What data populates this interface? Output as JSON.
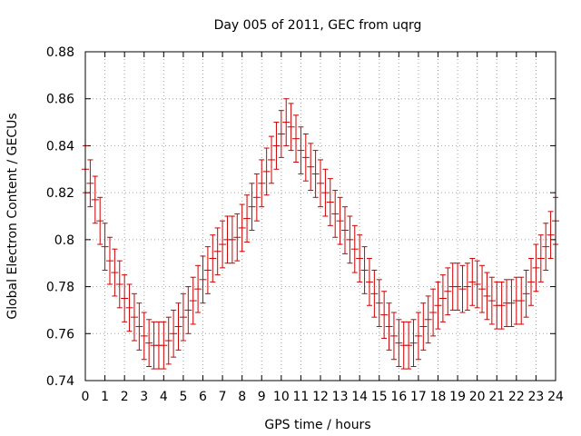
{
  "chart_data": {
    "type": "line",
    "title": "Day 005 of 2011, GEC from uqrg",
    "xlabel": "GPS time / hours",
    "ylabel": "Global Electron Content / GECUs",
    "xlim": [
      0,
      24
    ],
    "ylim": [
      0.74,
      0.88
    ],
    "xticks": [
      "0",
      "1",
      "2",
      "3",
      "4",
      "5",
      "6",
      "7",
      "8",
      "9",
      "10",
      "11",
      "12",
      "13",
      "14",
      "15",
      "16",
      "17",
      "18",
      "19",
      "20",
      "21",
      "22",
      "23",
      "24"
    ],
    "yticks": [
      "0.74",
      "0.76",
      "0.78",
      "0.8",
      "0.82",
      "0.84",
      "0.86",
      "0.88"
    ],
    "grid": true,
    "legend": "none",
    "series": [
      {
        "color": "#cc0000",
        "error": 0.01,
        "x": [
          0,
          0.25,
          0.5,
          0.75,
          1,
          1.25,
          1.5,
          1.75,
          2,
          2.25,
          2.5,
          2.75,
          3,
          3.25,
          3.5,
          3.75,
          4,
          4.25,
          4.5,
          4.75,
          5,
          5.25,
          5.5,
          5.75,
          6,
          6.25,
          6.5,
          6.75,
          7,
          7.25,
          7.5,
          7.75,
          8,
          8.25,
          8.5,
          8.75,
          9,
          9.25,
          9.5,
          9.75,
          10,
          10.25,
          10.5,
          10.75,
          11,
          11.25,
          11.5,
          11.75,
          12,
          12.25,
          12.5,
          12.75,
          13,
          13.25,
          13.5,
          13.75,
          14,
          14.25,
          14.5,
          14.75,
          15,
          15.25,
          15.5,
          15.75,
          16,
          16.25,
          16.5,
          16.75,
          17,
          17.25,
          17.5,
          17.75,
          18,
          18.25,
          18.5,
          18.75,
          19,
          19.25,
          19.5,
          19.75,
          20,
          20.25,
          20.5,
          20.75,
          21,
          21.25,
          21.5,
          21.75,
          22,
          22.25,
          22.5,
          22.75,
          23,
          23.25,
          23.5,
          23.75,
          24
        ],
        "y": [
          0.83,
          0.824,
          0.817,
          0.808,
          0.797,
          0.791,
          0.786,
          0.781,
          0.775,
          0.771,
          0.767,
          0.763,
          0.759,
          0.756,
          0.755,
          0.755,
          0.755,
          0.757,
          0.76,
          0.763,
          0.767,
          0.77,
          0.774,
          0.779,
          0.783,
          0.787,
          0.792,
          0.795,
          0.798,
          0.8,
          0.8,
          0.801,
          0.805,
          0.809,
          0.814,
          0.818,
          0.824,
          0.829,
          0.834,
          0.84,
          0.845,
          0.85,
          0.848,
          0.843,
          0.838,
          0.835,
          0.831,
          0.828,
          0.824,
          0.82,
          0.816,
          0.811,
          0.808,
          0.804,
          0.8,
          0.796,
          0.792,
          0.787,
          0.782,
          0.777,
          0.773,
          0.768,
          0.763,
          0.759,
          0.756,
          0.755,
          0.755,
          0.756,
          0.759,
          0.763,
          0.766,
          0.769,
          0.772,
          0.775,
          0.778,
          0.78,
          0.78,
          0.779,
          0.78,
          0.782,
          0.781,
          0.779,
          0.776,
          0.774,
          0.772,
          0.772,
          0.773,
          0.773,
          0.774,
          0.774,
          0.777,
          0.782,
          0.788,
          0.792,
          0.797,
          0.802,
          0.808
        ]
      }
    ]
  }
}
